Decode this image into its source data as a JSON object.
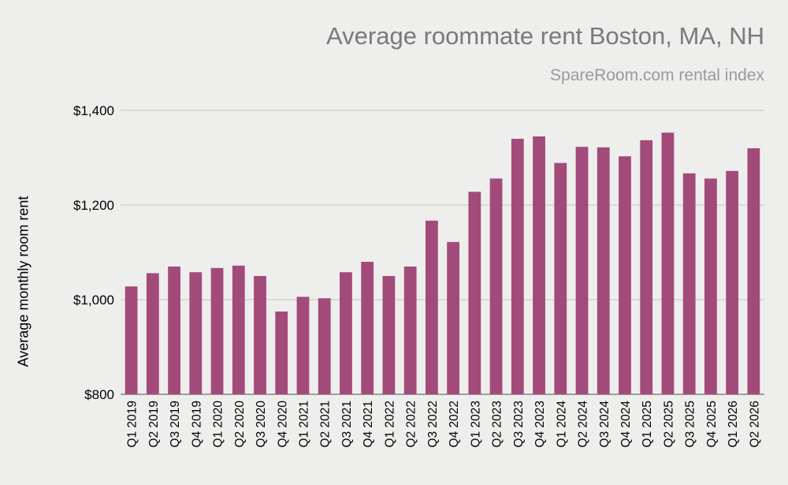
{
  "chart_data": {
    "type": "bar",
    "title": "Average roommate rent Boston, MA, NH",
    "subtitle": "SpareRoom.com rental index",
    "xlabel": "",
    "ylabel": "Average monthly room rent",
    "ylim": [
      800,
      1400
    ],
    "yticks": [
      800,
      1000,
      1200,
      1400
    ],
    "ytick_labels": [
      "$800",
      "$1,000",
      "$1,200",
      "$1,400"
    ],
    "grid": true,
    "legend": "none",
    "bar_color": "#a24b7a",
    "categories": [
      "Q1 2019",
      "Q2 2019",
      "Q3 2019",
      "Q4 2019",
      "Q1 2020",
      "Q2 2020",
      "Q3 2020",
      "Q4 2020",
      "Q1 2021",
      "Q2 2021",
      "Q3 2021",
      "Q4 2021",
      "Q1 2022",
      "Q2 2022",
      "Q3 2022",
      "Q4 2022",
      "Q1 2023",
      "Q2 2023",
      "Q3 2023",
      "Q4 2023",
      "Q1 2024",
      "Q2 2024",
      "Q3 2024",
      "Q4 2024",
      "Q1 2025",
      "Q2 2025",
      "Q3 2025",
      "Q4 2025",
      "Q1 2026",
      "Q2 2026"
    ],
    "values": [
      1028,
      1056,
      1070,
      1058,
      1067,
      1072,
      1050,
      975,
      1006,
      1003,
      1058,
      1080,
      1050,
      1070,
      1167,
      1122,
      1228,
      1256,
      1340,
      1345,
      1289,
      1323,
      1322,
      1303,
      1337,
      1353,
      1267,
      1256,
      1272,
      1320
    ]
  }
}
